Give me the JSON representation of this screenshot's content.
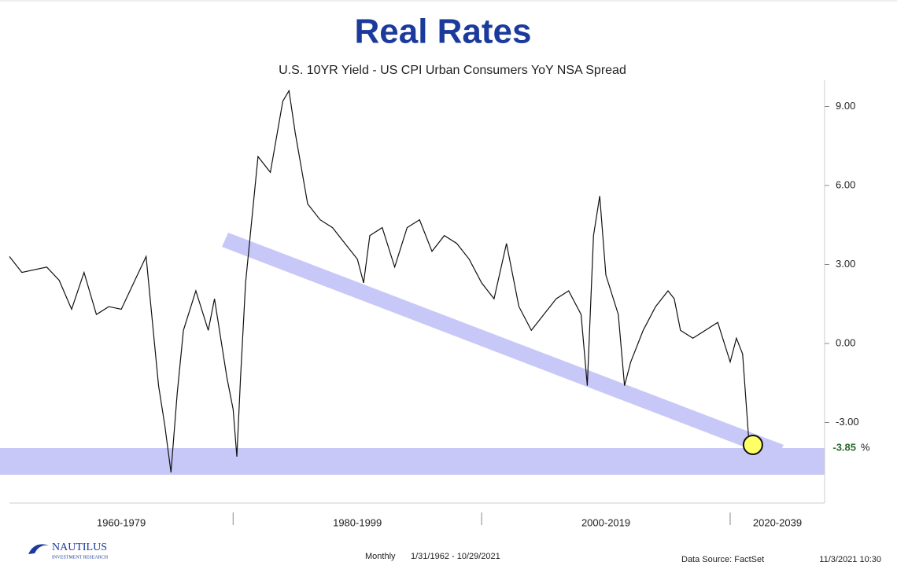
{
  "chart_data": {
    "type": "line",
    "title": "Real Rates",
    "subtitle": "U.S. 10YR Yield -  US CPI Urban Consumers YoY NSA  Spread",
    "series": [
      {
        "name": "U.S. 10YR Yield -  US CPI Urban Consumers YoY NSA  Spread",
        "color": "#111111",
        "x": [
          1962,
          1963,
          1965,
          1966,
          1967,
          1968,
          1969,
          1970,
          1971,
          1972,
          1973,
          1974,
          1974.5,
          1975,
          1975.5,
          1976,
          1977,
          1978,
          1978.5,
          1979,
          1979.5,
          1980,
          1980.3,
          1980.6,
          1981,
          1981.5,
          1982,
          1983,
          1984,
          1984.5,
          1985,
          1986,
          1987,
          1988,
          1989,
          1990,
          1990.5,
          1991,
          1992,
          1993,
          1994,
          1995,
          1996,
          1997,
          1998,
          1999,
          2000,
          2001,
          2002,
          2003,
          2004,
          2005,
          2006,
          2007,
          2008,
          2008.5,
          2009,
          2009.5,
          2010,
          2011,
          2011.5,
          2012,
          2013,
          2014,
          2015,
          2015.5,
          2016,
          2017,
          2018,
          2019,
          2020,
          2020.5,
          2021,
          2021.5,
          2021.83
        ],
        "values": [
          3.3,
          2.7,
          2.9,
          2.4,
          1.3,
          2.7,
          1.1,
          1.4,
          1.3,
          2.3,
          3.3,
          -1.6,
          -3.1,
          -4.9,
          -1.9,
          0.5,
          2.0,
          0.5,
          1.7,
          0.2,
          -1.3,
          -2.5,
          -4.3,
          -1.3,
          2.3,
          4.7,
          7.1,
          6.5,
          9.2,
          9.6,
          8.0,
          5.3,
          4.7,
          4.4,
          3.8,
          3.2,
          2.3,
          4.1,
          4.4,
          2.9,
          4.4,
          4.7,
          3.5,
          4.1,
          3.8,
          3.2,
          2.3,
          1.7,
          3.8,
          1.4,
          0.5,
          1.1,
          1.7,
          2.0,
          1.1,
          -1.6,
          4.1,
          5.6,
          2.6,
          1.1,
          -1.6,
          -0.7,
          0.5,
          1.4,
          2.0,
          1.7,
          0.5,
          0.2,
          0.5,
          0.8,
          -0.7,
          0.2,
          -0.4,
          -3.7,
          -3.85
        ]
      }
    ],
    "last_value_label": "-3.85",
    "unit": "%",
    "xlim": [
      1962,
      2027.6
    ],
    "xticks": [
      1980,
      2000,
      2020
    ],
    "period_labels": [
      "1960-1979",
      "1980-1999",
      "2000-2019",
      "2020-2039"
    ],
    "ylim": [
      -6,
      10
    ],
    "yticks": [
      {
        "value": 9,
        "label": "9.00"
      },
      {
        "value": 6,
        "label": "6.00"
      },
      {
        "value": 3,
        "label": "3.00"
      },
      {
        "value": 0,
        "label": "0.00"
      },
      {
        "value": -3,
        "label": "-3.00"
      }
    ],
    "footer": {
      "frequency": "Monthly",
      "range": "1/31/1962 - 10/29/2021",
      "source": "Data Source: FactSet",
      "timestamp": "11/3/2021 10:30"
    },
    "logo": {
      "name": "NAUTILUS",
      "tagline": "INVESTMENT RESEARCH"
    }
  }
}
